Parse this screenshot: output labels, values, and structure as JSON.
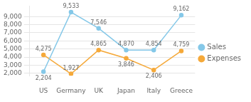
{
  "chart_data": {
    "type": "line",
    "categories": [
      "US",
      "Germany",
      "UK",
      "Japan",
      "Italy",
      "Greece"
    ],
    "series": [
      {
        "name": "Sales",
        "color": "#85c8e8",
        "values": [
          2204,
          9533,
          7546,
          4870,
          4854,
          9162
        ],
        "value_labels": [
          "2,204",
          "9,533",
          "7,546",
          "4,870",
          "4,854",
          "9,162"
        ]
      },
      {
        "name": "Expenses",
        "color": "#f5a93a",
        "values": [
          4275,
          1927,
          4865,
          3846,
          2406,
          4759
        ],
        "value_labels": [
          "4,275",
          "1,927",
          "4,865",
          "3,846",
          "2,406",
          "4,759"
        ]
      }
    ],
    "ylim": [
      1700,
      10300
    ],
    "yticks": [
      {
        "value": 2000,
        "label": "2,000"
      },
      {
        "value": 3000,
        "label": "3,000"
      },
      {
        "value": 4000,
        "label": "4,000"
      },
      {
        "value": 5000,
        "label": "5,000"
      },
      {
        "value": 6000,
        "label": "6,000"
      },
      {
        "value": 7000,
        "label": "7,000"
      },
      {
        "value": 8000,
        "label": "8,000"
      },
      {
        "value": 9000,
        "label": "9,000"
      }
    ],
    "grid": true,
    "legend": "right",
    "data_labels": true,
    "marker": "circle"
  }
}
